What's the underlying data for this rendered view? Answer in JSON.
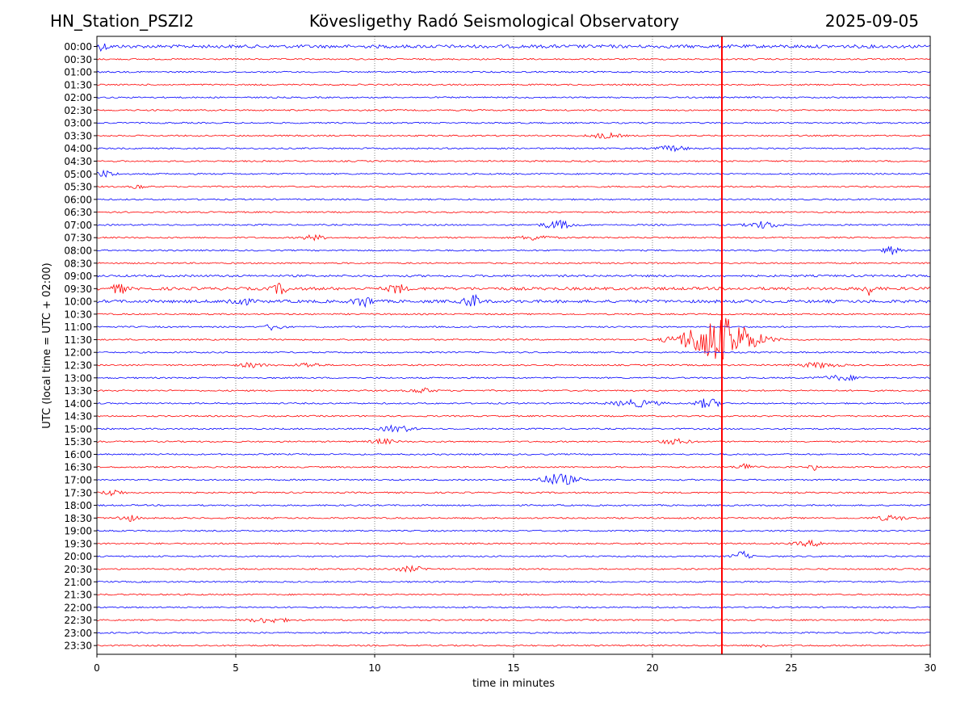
{
  "header": {
    "station": "HN_Station_PSZI2",
    "observatory": "Kövesligethy Radó Seismological Observatory",
    "date": "2025-09-05"
  },
  "chart_data": {
    "type": "line",
    "title": "Kövesligethy Radó Seismological Observatory",
    "xlabel": "time in minutes",
    "ylabel": "UTC (local time = UTC + 02:00)",
    "xlim": [
      0,
      30
    ],
    "x_ticks": [
      "0",
      "5",
      "10",
      "15",
      "20",
      "25",
      "30"
    ],
    "grid": "vertical dotted at x ticks",
    "rows": [
      "00:00",
      "00:30",
      "01:00",
      "01:30",
      "02:00",
      "02:30",
      "03:00",
      "03:30",
      "04:00",
      "04:30",
      "05:00",
      "05:30",
      "06:00",
      "06:30",
      "07:00",
      "07:30",
      "08:00",
      "08:30",
      "09:00",
      "09:30",
      "10:00",
      "10:30",
      "11:00",
      "11:30",
      "12:00",
      "12:30",
      "13:00",
      "13:30",
      "14:00",
      "14:30",
      "15:00",
      "15:30",
      "16:00",
      "16:30",
      "17:00",
      "17:30",
      "18:00",
      "18:30",
      "19:00",
      "19:30",
      "20:00",
      "20:30",
      "21:00",
      "21:30",
      "22:00",
      "22:30",
      "23:00",
      "23:30"
    ],
    "trace_colors": [
      "#0000ff",
      "#ff0000"
    ],
    "noise": [
      {
        "row": 0,
        "amp": 2.0
      },
      {
        "row": 18,
        "amp": 1.3
      },
      {
        "row": 19,
        "amp": 1.8
      },
      {
        "row": 20,
        "amp": 1.8
      }
    ],
    "bursts": [
      {
        "row": 0,
        "t": 0.2,
        "amp": 4,
        "dur": 0.3
      },
      {
        "row": 7,
        "t": 18.3,
        "amp": 3,
        "dur": 0.8
      },
      {
        "row": 8,
        "t": 20.7,
        "amp": 3,
        "dur": 0.8
      },
      {
        "row": 10,
        "t": 0.3,
        "amp": 4,
        "dur": 0.5
      },
      {
        "row": 11,
        "t": 1.5,
        "amp": 3,
        "dur": 0.3
      },
      {
        "row": 14,
        "t": 16.6,
        "amp": 5,
        "dur": 0.8
      },
      {
        "row": 14,
        "t": 24.0,
        "amp": 4,
        "dur": 0.8
      },
      {
        "row": 15,
        "t": 7.8,
        "amp": 3,
        "dur": 0.6
      },
      {
        "row": 15,
        "t": 15.8,
        "amp": 3,
        "dur": 0.8
      },
      {
        "row": 16,
        "t": 28.6,
        "amp": 5,
        "dur": 0.4
      },
      {
        "row": 19,
        "t": 0.8,
        "amp": 7,
        "dur": 0.3
      },
      {
        "row": 19,
        "t": 6.6,
        "amp": 6,
        "dur": 0.4
      },
      {
        "row": 19,
        "t": 10.8,
        "amp": 6,
        "dur": 0.4
      },
      {
        "row": 19,
        "t": 27.8,
        "amp": 7,
        "dur": 0.3
      },
      {
        "row": 20,
        "t": 5.1,
        "amp": 6,
        "dur": 0.5
      },
      {
        "row": 20,
        "t": 9.6,
        "amp": 6,
        "dur": 0.5
      },
      {
        "row": 20,
        "t": 13.5,
        "amp": 8,
        "dur": 0.4
      },
      {
        "row": 22,
        "t": 6.4,
        "amp": 5,
        "dur": 0.4
      },
      {
        "row": 23,
        "t": 22.4,
        "amp": 28,
        "dur": 1.8
      },
      {
        "row": 25,
        "t": 5.6,
        "amp": 3,
        "dur": 0.6
      },
      {
        "row": 25,
        "t": 7.6,
        "amp": 3,
        "dur": 0.6
      },
      {
        "row": 25,
        "t": 26.0,
        "amp": 3,
        "dur": 1.0
      },
      {
        "row": 26,
        "t": 26.8,
        "amp": 3,
        "dur": 1.0
      },
      {
        "row": 27,
        "t": 11.7,
        "amp": 3,
        "dur": 0.6
      },
      {
        "row": 28,
        "t": 19.4,
        "amp": 4,
        "dur": 1.2
      },
      {
        "row": 28,
        "t": 22.0,
        "amp": 6,
        "dur": 0.6
      },
      {
        "row": 30,
        "t": 10.8,
        "amp": 4,
        "dur": 0.8
      },
      {
        "row": 31,
        "t": 10.3,
        "amp": 3,
        "dur": 0.6
      },
      {
        "row": 31,
        "t": 20.8,
        "amp": 3,
        "dur": 0.8
      },
      {
        "row": 33,
        "t": 23.4,
        "amp": 4,
        "dur": 0.5
      },
      {
        "row": 33,
        "t": 25.8,
        "amp": 5,
        "dur": 0.2
      },
      {
        "row": 34,
        "t": 16.6,
        "amp": 7,
        "dur": 1.0
      },
      {
        "row": 35,
        "t": 0.6,
        "amp": 4,
        "dur": 0.5
      },
      {
        "row": 37,
        "t": 1.1,
        "amp": 4,
        "dur": 0.5
      },
      {
        "row": 37,
        "t": 28.6,
        "amp": 3,
        "dur": 0.8
      },
      {
        "row": 39,
        "t": 25.7,
        "amp": 3,
        "dur": 0.8
      },
      {
        "row": 40,
        "t": 23.2,
        "amp": 6,
        "dur": 0.4
      },
      {
        "row": 41,
        "t": 11.3,
        "amp": 3,
        "dur": 0.8
      },
      {
        "row": 45,
        "t": 6.2,
        "amp": 3,
        "dur": 1.0
      },
      {
        "row": 47,
        "t": 24.0,
        "amp": 2,
        "dur": 0.5
      }
    ],
    "marker": {
      "x": 22.5,
      "color": "#ff0000"
    }
  }
}
